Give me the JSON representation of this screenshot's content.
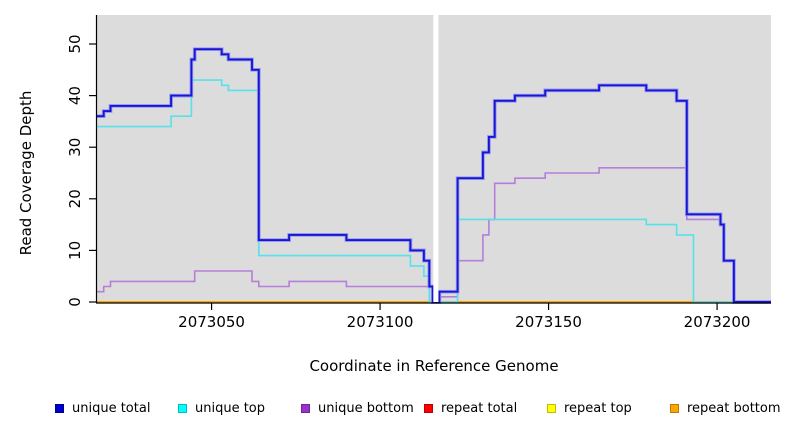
{
  "figure": {
    "plot_bg_color": "#dcdcdc",
    "outer_bg_color": "#ffffff",
    "axis_color": "#000000"
  },
  "chart_data": {
    "type": "line",
    "subtype": "step-coverage",
    "title": "",
    "xlabel": "Coordinate in Reference Genome",
    "ylabel": "Read Coverage Depth",
    "xlim": [
      2073016,
      2073216
    ],
    "ylim": [
      0,
      50
    ],
    "x_ticks": [
      2073050,
      2073100,
      2073150,
      2073200
    ],
    "y_ticks": [
      0,
      10,
      20,
      30,
      40,
      50
    ],
    "grid": false,
    "legend_position": "bottom",
    "gap": {
      "x_start": 2073115.8,
      "x_end": 2073117.3,
      "note": "white band, no coverage"
    },
    "series": [
      {
        "name": "repeat total",
        "legend_color": "#ff0000",
        "line_color": "#e60000",
        "width": 1.5,
        "steps": [
          [
            2073016,
            0
          ]
        ]
      },
      {
        "name": "repeat top",
        "legend_color": "#ffff00",
        "line_color": "#ffff00",
        "width": 1.5,
        "steps": [
          [
            2073016,
            0
          ]
        ]
      },
      {
        "name": "repeat bottom",
        "legend_color": "#ffa500",
        "line_color": "#ffa500",
        "width": 2,
        "steps": [
          [
            2073016,
            0
          ]
        ]
      },
      {
        "name": "unique bottom",
        "legend_color": "#9932cc",
        "line_color": "#b47fd8",
        "width": 1.6,
        "steps": [
          [
            2073016,
            2
          ],
          [
            2073018,
            3
          ],
          [
            2073020,
            4
          ],
          [
            2073045,
            6
          ],
          [
            2073062,
            4
          ],
          [
            2073064,
            3
          ],
          [
            2073073,
            4
          ],
          [
            2073090,
            3
          ],
          [
            2073115.6,
            0
          ],
          [
            2073117.6,
            1
          ],
          [
            2073123,
            8
          ],
          [
            2073130.5,
            13
          ],
          [
            2073132.3,
            16
          ],
          [
            2073134,
            23
          ],
          [
            2073140,
            24
          ],
          [
            2073149,
            25
          ],
          [
            2073165,
            26
          ],
          [
            2073191,
            16
          ],
          [
            2073201,
            15
          ],
          [
            2073202,
            8
          ],
          [
            2073205,
            0
          ]
        ]
      },
      {
        "name": "unique top",
        "legend_color": "#00ffff",
        "line_color": "#55e2ec",
        "width": 1.6,
        "steps": [
          [
            2073016,
            34
          ],
          [
            2073038,
            36
          ],
          [
            2073044,
            43
          ],
          [
            2073053,
            42
          ],
          [
            2073055,
            41
          ],
          [
            2073064,
            9
          ],
          [
            2073109,
            7
          ],
          [
            2073113,
            5
          ],
          [
            2073114.6,
            0
          ],
          [
            2073123,
            16
          ],
          [
            2073179,
            15
          ],
          [
            2073188,
            13
          ],
          [
            2073193,
            0
          ]
        ]
      },
      {
        "name": "unique total",
        "legend_color": "#0000cd",
        "line_color": "#1717d1",
        "halo_color": "#9a9af2",
        "width": 1.9,
        "steps": [
          [
            2073016,
            36
          ],
          [
            2073018,
            37
          ],
          [
            2073020,
            38
          ],
          [
            2073038,
            40
          ],
          [
            2073044,
            47
          ],
          [
            2073045,
            49
          ],
          [
            2073053,
            48
          ],
          [
            2073055,
            47
          ],
          [
            2073062,
            45
          ],
          [
            2073064,
            12
          ],
          [
            2073073,
            13
          ],
          [
            2073090,
            12
          ],
          [
            2073109,
            10
          ],
          [
            2073113,
            8
          ],
          [
            2073114.6,
            3
          ],
          [
            2073115.6,
            0
          ],
          [
            2073117.6,
            2
          ],
          [
            2073123,
            24
          ],
          [
            2073130.5,
            29
          ],
          [
            2073132.3,
            32
          ],
          [
            2073134,
            39
          ],
          [
            2073140,
            40
          ],
          [
            2073149,
            41
          ],
          [
            2073165,
            42
          ],
          [
            2073179,
            41
          ],
          [
            2073188,
            39
          ],
          [
            2073191,
            17
          ],
          [
            2073201,
            15
          ],
          [
            2073202,
            8
          ],
          [
            2073205,
            0
          ]
        ]
      }
    ]
  },
  "legend": {
    "items": [
      {
        "label": "unique total",
        "color": "#0000cd"
      },
      {
        "label": "unique top",
        "color": "#00ffff"
      },
      {
        "label": "unique bottom",
        "color": "#9932cc"
      },
      {
        "label": "repeat total",
        "color": "#ff0000"
      },
      {
        "label": "repeat top",
        "color": "#ffff00"
      },
      {
        "label": "repeat bottom",
        "color": "#ffa500"
      }
    ]
  }
}
